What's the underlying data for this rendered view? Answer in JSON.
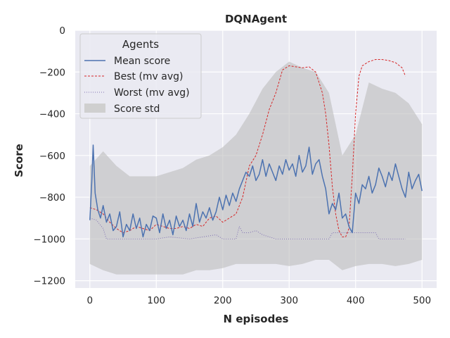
{
  "chart_data": {
    "type": "line",
    "title": "DQNAgent",
    "xlabel": "N episodes",
    "ylabel": "Score",
    "xlim": [
      -22,
      522
    ],
    "ylim": [
      -1235,
      0
    ],
    "xticks": [
      0,
      100,
      200,
      300,
      400,
      500
    ],
    "yticks": [
      0,
      -200,
      -400,
      -600,
      -800,
      -1000,
      -1200
    ],
    "grid": true,
    "background": "#eaeaf2",
    "legend": {
      "title": "Agents",
      "position": "top-left"
    },
    "series": [
      {
        "name": "Mean score",
        "color": "#4c72b0",
        "style": "solid",
        "x": [
          0,
          3,
          5,
          8,
          12,
          16,
          20,
          25,
          30,
          35,
          40,
          45,
          50,
          55,
          60,
          65,
          70,
          75,
          80,
          85,
          90,
          95,
          100,
          105,
          110,
          115,
          120,
          125,
          130,
          135,
          140,
          145,
          150,
          155,
          160,
          165,
          170,
          175,
          180,
          185,
          190,
          195,
          200,
          205,
          210,
          215,
          220,
          225,
          230,
          235,
          240,
          245,
          250,
          255,
          260,
          265,
          270,
          275,
          280,
          285,
          290,
          295,
          300,
          305,
          310,
          315,
          320,
          325,
          330,
          335,
          340,
          345,
          350,
          355,
          360,
          365,
          370,
          375,
          380,
          385,
          390,
          395,
          400,
          405,
          410,
          415,
          420,
          425,
          430,
          435,
          440,
          445,
          450,
          455,
          460,
          465,
          470,
          475,
          480,
          485,
          490,
          495,
          500
        ],
        "y": [
          -910,
          -720,
          -550,
          -780,
          -860,
          -900,
          -840,
          -920,
          -880,
          -960,
          -940,
          -870,
          -990,
          -930,
          -960,
          -880,
          -950,
          -900,
          -990,
          -930,
          -960,
          -890,
          -900,
          -970,
          -880,
          -950,
          -910,
          -980,
          -890,
          -940,
          -910,
          -960,
          -880,
          -940,
          -830,
          -920,
          -870,
          -900,
          -850,
          -910,
          -870,
          -800,
          -860,
          -790,
          -840,
          -780,
          -820,
          -760,
          -720,
          -680,
          -700,
          -650,
          -720,
          -690,
          -620,
          -700,
          -640,
          -680,
          -720,
          -650,
          -690,
          -620,
          -670,
          -640,
          -700,
          -600,
          -680,
          -650,
          -560,
          -690,
          -640,
          -620,
          -700,
          -760,
          -880,
          -830,
          -860,
          -780,
          -900,
          -880,
          -940,
          -970,
          -780,
          -830,
          -740,
          -760,
          -700,
          -780,
          -740,
          -660,
          -700,
          -750,
          -680,
          -720,
          -640,
          -700,
          -760,
          -800,
          -680,
          -760,
          -720,
          -690,
          -770
        ]
      },
      {
        "name": "Best (mv avg)",
        "color": "#d62728",
        "style": "dashed",
        "x": [
          0,
          10,
          20,
          30,
          40,
          50,
          60,
          70,
          80,
          90,
          100,
          110,
          120,
          130,
          140,
          150,
          160,
          170,
          180,
          190,
          200,
          210,
          220,
          230,
          240,
          250,
          260,
          270,
          280,
          290,
          300,
          310,
          320,
          330,
          340,
          350,
          355,
          360,
          365,
          370,
          375,
          380,
          385,
          390,
          395,
          400,
          405,
          410,
          420,
          430,
          440,
          450,
          460,
          470,
          475
        ],
        "y": [
          -850,
          -860,
          -880,
          -920,
          -950,
          -970,
          -960,
          -940,
          -950,
          -960,
          -930,
          -940,
          -950,
          -950,
          -940,
          -950,
          -930,
          -940,
          -900,
          -890,
          -920,
          -900,
          -880,
          -800,
          -650,
          -600,
          -500,
          -380,
          -300,
          -190,
          -170,
          -175,
          -180,
          -175,
          -200,
          -300,
          -400,
          -550,
          -750,
          -880,
          -960,
          -990,
          -990,
          -950,
          -700,
          -400,
          -220,
          -170,
          -150,
          -140,
          -140,
          -145,
          -155,
          -180,
          -220
        ]
      },
      {
        "name": "Worst (mv avg)",
        "color": "#8172b3",
        "style": "dotted",
        "x": [
          0,
          10,
          20,
          25,
          30,
          50,
          70,
          90,
          100,
          120,
          150,
          170,
          190,
          200,
          210,
          220,
          225,
          230,
          240,
          250,
          260,
          270,
          280,
          300,
          330,
          360,
          365,
          370,
          380,
          390,
          400,
          410,
          420,
          430,
          435,
          440,
          450,
          460,
          475
        ],
        "y": [
          -900,
          -910,
          -950,
          -1000,
          -1000,
          -1000,
          -1000,
          -1000,
          -1000,
          -990,
          -1000,
          -990,
          -980,
          -1000,
          -1000,
          -1000,
          -940,
          -970,
          -970,
          -960,
          -980,
          -990,
          -1000,
          -1000,
          -1000,
          -1000,
          -970,
          -970,
          -970,
          -970,
          -970,
          -970,
          -970,
          -970,
          -1000,
          -1000,
          -1000,
          -1000,
          -1000
        ]
      }
    ],
    "band": {
      "name": "Score std",
      "color": "#bdbdbd",
      "x": [
        0,
        20,
        40,
        60,
        80,
        100,
        120,
        140,
        160,
        180,
        200,
        220,
        240,
        260,
        280,
        300,
        320,
        340,
        360,
        380,
        400,
        420,
        440,
        460,
        480,
        500
      ],
      "upper": [
        -650,
        -580,
        -650,
        -700,
        -700,
        -700,
        -680,
        -660,
        -620,
        -600,
        -560,
        -500,
        -400,
        -280,
        -200,
        -150,
        -180,
        -200,
        -300,
        -600,
        -500,
        -250,
        -280,
        -300,
        -350,
        -450
      ],
      "lower": [
        -1120,
        -1150,
        -1170,
        -1170,
        -1170,
        -1170,
        -1170,
        -1170,
        -1150,
        -1150,
        -1140,
        -1120,
        -1120,
        -1120,
        -1120,
        -1130,
        -1120,
        -1100,
        -1100,
        -1150,
        -1130,
        -1120,
        -1120,
        -1130,
        -1120,
        -1100
      ]
    }
  }
}
